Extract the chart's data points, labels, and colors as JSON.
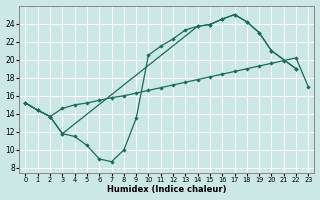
{
  "bg_color": "#cce8e6",
  "line_color": "#1a6b5a",
  "grid_color": "#ffffff",
  "xlabel": "Humidex (Indice chaleur)",
  "xlim": [
    -0.5,
    23.5
  ],
  "ylim": [
    7.5,
    26
  ],
  "yticks": [
    8,
    10,
    12,
    14,
    16,
    18,
    20,
    22,
    24
  ],
  "xticks": [
    0,
    1,
    2,
    3,
    4,
    5,
    6,
    7,
    8,
    9,
    10,
    11,
    12,
    13,
    14,
    15,
    16,
    17,
    18,
    19,
    20,
    21,
    22,
    23
  ],
  "line1_x": [
    0,
    1,
    2,
    3,
    4,
    5,
    6,
    7,
    8,
    9,
    10,
    11,
    12,
    13,
    14,
    15,
    16,
    17,
    18,
    19,
    20,
    21,
    22,
    23
  ],
  "line1_y": [
    15.2,
    14.4,
    13.7,
    14.6,
    15.0,
    15.2,
    15.5,
    15.8,
    16.0,
    16.3,
    16.6,
    16.9,
    17.2,
    17.5,
    17.8,
    18.1,
    18.4,
    18.7,
    19.0,
    19.3,
    19.6,
    19.9,
    20.2,
    17.0
  ],
  "line2_x": [
    0,
    1,
    2,
    3,
    4,
    5,
    6,
    7,
    8,
    9,
    10,
    11,
    12,
    13,
    14,
    15,
    16,
    17,
    18,
    19,
    20,
    22
  ],
  "line2_y": [
    15.2,
    14.4,
    13.7,
    11.8,
    11.5,
    10.5,
    9.0,
    8.7,
    10.0,
    13.5,
    20.5,
    21.5,
    22.3,
    23.3,
    23.7,
    23.9,
    24.5,
    25.0,
    24.2,
    23.0,
    21.0,
    19.0
  ],
  "line3_x": [
    0,
    1,
    2,
    3,
    14,
    15,
    16,
    17,
    18,
    19,
    20,
    22
  ],
  "line3_y": [
    15.2,
    14.4,
    13.7,
    11.8,
    23.7,
    23.9,
    24.5,
    25.0,
    24.2,
    23.0,
    21.0,
    19.0
  ]
}
